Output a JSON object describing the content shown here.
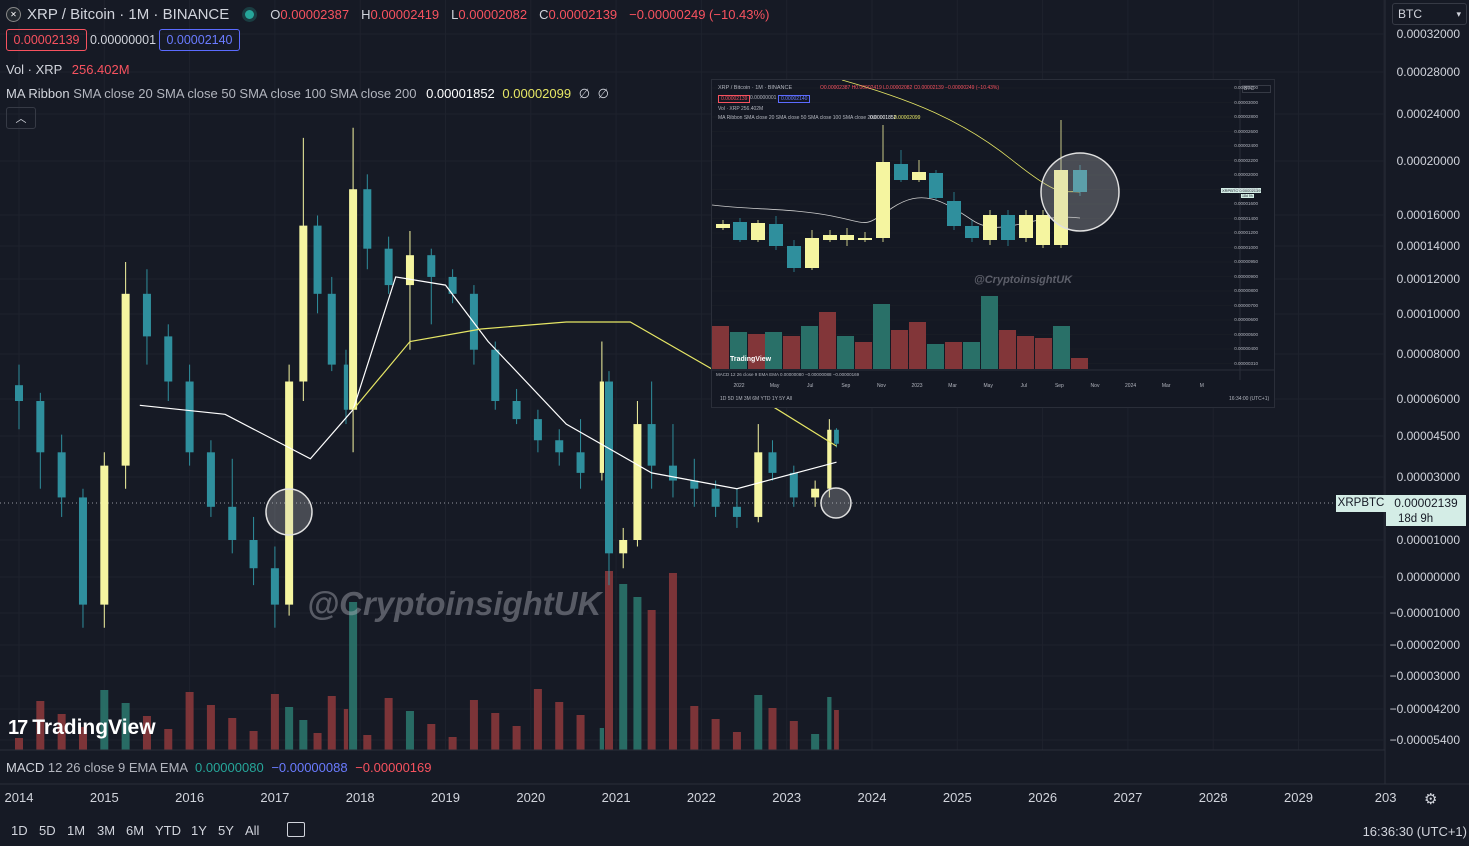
{
  "header": {
    "symbol": "XRP / Bitcoin · 1M · BINANCE",
    "ohlc": [
      {
        "label": "O",
        "value": "0.00002387"
      },
      {
        "label": "H",
        "value": "0.00002419"
      },
      {
        "label": "L",
        "value": "0.00002082"
      },
      {
        "label": "C",
        "value": "0.00002139"
      }
    ],
    "change": "−0.00000249 (−10.43%)",
    "bid": "0.00002139",
    "spread": "0.00000001",
    "ask": "0.00002140",
    "currency_select": "BTC"
  },
  "volume_legend": {
    "label": "Vol · XRP",
    "value": "256.402M"
  },
  "ma_legend": {
    "label": "MA Ribbon",
    "params": "SMA close 20 SMA close 50 SMA close 100 SMA close 200",
    "v1": "0.00001852",
    "v2": "0.00002099",
    "v3": "∅",
    "v4": "∅"
  },
  "macd_legend": {
    "label": "MACD",
    "params": "12 26 close 9 EMA EMA",
    "v1": "0.00000080",
    "v2": "−0.00000088",
    "v3": "−0.00000169"
  },
  "watermark": "@CryptoinsightUK",
  "tv_logo": "TradingView",
  "price_tag": {
    "symbol": "XRPBTC",
    "price": "0.00002139",
    "countdown": "18d 9h"
  },
  "y_axis": [
    "0.00032000",
    "0.00028000",
    "0.00024000",
    "0.00020000",
    "0.00016000",
    "0.00014000",
    "0.00012000",
    "0.00010000",
    "0.00008000",
    "0.00006000",
    "0.00004500",
    "0.00003000",
    "0.00001000",
    "0.00000000",
    "−0.00001000",
    "−0.00002000",
    "−0.00003000",
    "−0.00004200",
    "−0.00005400"
  ],
  "x_axis": [
    "2014",
    "2015",
    "2016",
    "2017",
    "2018",
    "2019",
    "2020",
    "2021",
    "2022",
    "2023",
    "2024",
    "2025",
    "2026",
    "2027",
    "2028",
    "2029",
    "203"
  ],
  "timeframes": [
    "1D",
    "5D",
    "1M",
    "3M",
    "6M",
    "YTD",
    "1Y",
    "5Y",
    "All"
  ],
  "clock": "16:36:30 (UTC+1)",
  "inset": {
    "header": "XRP / Bitcoin · 1M · BINANCE",
    "ohlc": "O0.00002387 H0.00002419 L0.00002082 C0.00002139 −0.00000249 (−10.43%)",
    "bid": "0.00002139",
    "spread": "0.00000001",
    "ask": "0.00002140",
    "vol": "Vol · XRP 256.402M",
    "ma": "MA Ribbon SMA close 20 SMA close 50 SMA close 100 SMA close 200",
    "ma_v1": "0.00001852",
    "ma_v2": "0.00002099",
    "currency": "BTC",
    "watermark": "@CryptoinsightUK",
    "tv_logo": "TradingView",
    "macd": "MACD 12 26 close 9 EMA EMA 0.00000080 −0.00000088 −0.00000169",
    "price_tag": "XRPBTC 0.00002139",
    "countdown": "18d 9h",
    "y_axis": [
      "0.00003200",
      "0.00003000",
      "0.00002800",
      "0.00002600",
      "0.00002400",
      "0.00002200",
      "0.00002000",
      "0.00001800",
      "0.00001600",
      "0.00001400",
      "0.00001200",
      "0.00001000",
      "0.00000950",
      "0.00000900",
      "0.00000800",
      "0.00000700",
      "0.00000600",
      "0.00000500",
      "0.00000400",
      "0.00000310"
    ],
    "x_axis": [
      "2022",
      "May",
      "Jul",
      "Sep",
      "Nov",
      "2023",
      "Mar",
      "May",
      "Jul",
      "Sep",
      "Nov",
      "2024",
      "Mar",
      "M"
    ],
    "timeframes": "1D 5D 1M 3M 6M YTD 1Y 5Y All",
    "clock": "16:34:00 (UTC+1)"
  },
  "chart_data": {
    "type": "candlestick",
    "symbol": "XRPBTC",
    "interval": "1M",
    "exchange": "BINANCE",
    "y_scale": "log",
    "grid": true,
    "x_range": [
      "2014",
      "2030"
    ],
    "candles": [
      {
        "t": "2014-01",
        "o": 3.4e-05,
        "h": 4e-05,
        "l": 2.4e-05,
        "c": 3e-05
      },
      {
        "t": "2014-04",
        "o": 3e-05,
        "h": 3.2e-05,
        "l": 1.5e-05,
        "c": 2e-05
      },
      {
        "t": "2014-07",
        "o": 2e-05,
        "h": 2.3e-05,
        "l": 1.2e-05,
        "c": 1.4e-05
      },
      {
        "t": "2014-10",
        "o": 1.4e-05,
        "h": 1.5e-05,
        "l": 5e-06,
        "c": 6e-06
      },
      {
        "t": "2015-01",
        "o": 6e-06,
        "h": 2e-05,
        "l": 5e-06,
        "c": 1.8e-05
      },
      {
        "t": "2015-04",
        "o": 1.8e-05,
        "h": 9e-05,
        "l": 1.5e-05,
        "c": 7e-05
      },
      {
        "t": "2015-07",
        "o": 7e-05,
        "h": 8.5e-05,
        "l": 4e-05,
        "c": 5e-05
      },
      {
        "t": "2015-10",
        "o": 5e-05,
        "h": 5.5e-05,
        "l": 3e-05,
        "c": 3.5e-05
      },
      {
        "t": "2016-01",
        "o": 3.5e-05,
        "h": 4e-05,
        "l": 1.8e-05,
        "c": 2e-05
      },
      {
        "t": "2016-04",
        "o": 2e-05,
        "h": 2.2e-05,
        "l": 1.2e-05,
        "c": 1.3e-05
      },
      {
        "t": "2016-07",
        "o": 1.3e-05,
        "h": 1.9e-05,
        "l": 9e-06,
        "c": 1e-05
      },
      {
        "t": "2016-10",
        "o": 1e-05,
        "h": 1.2e-05,
        "l": 7e-06,
        "c": 8e-06
      },
      {
        "t": "2017-01",
        "o": 8e-06,
        "h": 9.5e-06,
        "l": 5e-06,
        "c": 6e-06
      },
      {
        "t": "2017-03",
        "o": 6e-06,
        "h": 4e-05,
        "l": 5.5e-06,
        "c": 3.5e-05
      },
      {
        "t": "2017-05",
        "o": 3.5e-05,
        "h": 0.00024,
        "l": 3e-05,
        "c": 0.00012
      },
      {
        "t": "2017-07",
        "o": 0.00012,
        "h": 0.00013,
        "l": 6e-05,
        "c": 7e-05
      },
      {
        "t": "2017-09",
        "o": 7e-05,
        "h": 8e-05,
        "l": 3.8e-05,
        "c": 4e-05
      },
      {
        "t": "2017-11",
        "o": 4e-05,
        "h": 4.5e-05,
        "l": 2.5e-05,
        "c": 2.8e-05
      },
      {
        "t": "2017-12",
        "o": 2.8e-05,
        "h": 0.00026,
        "l": 2e-05,
        "c": 0.00016
      },
      {
        "t": "2018-02",
        "o": 0.00016,
        "h": 0.00018,
        "l": 8.5e-05,
        "c": 0.0001
      },
      {
        "t": "2018-05",
        "o": 0.0001,
        "h": 0.00011,
        "l": 7e-05,
        "c": 7.5e-05
      },
      {
        "t": "2018-08",
        "o": 7.5e-05,
        "h": 0.000115,
        "l": 4.5e-05,
        "c": 9.5e-05
      },
      {
        "t": "2018-11",
        "o": 9.5e-05,
        "h": 0.0001,
        "l": 5.5e-05,
        "c": 8e-05
      },
      {
        "t": "2019-02",
        "o": 8e-05,
        "h": 8.5e-05,
        "l": 6.5e-05,
        "c": 7e-05
      },
      {
        "t": "2019-05",
        "o": 7e-05,
        "h": 7.5e-05,
        "l": 4e-05,
        "c": 4.5e-05
      },
      {
        "t": "2019-08",
        "o": 4.5e-05,
        "h": 4.8e-05,
        "l": 2.8e-05,
        "c": 3e-05
      },
      {
        "t": "2019-11",
        "o": 3e-05,
        "h": 3.3e-05,
        "l": 2.5e-05,
        "c": 2.6e-05
      },
      {
        "t": "2020-02",
        "o": 2.6e-05,
        "h": 2.8e-05,
        "l": 2e-05,
        "c": 2.2e-05
      },
      {
        "t": "2020-05",
        "o": 2.2e-05,
        "h": 2.4e-05,
        "l": 1.8e-05,
        "c": 2e-05
      },
      {
        "t": "2020-08",
        "o": 2e-05,
        "h": 2.6e-05,
        "l": 1.5e-05,
        "c": 1.7e-05
      },
      {
        "t": "2020-11",
        "o": 1.7e-05,
        "h": 4.8e-05,
        "l": 1.6e-05,
        "c": 3.5e-05
      },
      {
        "t": "2020-12",
        "o": 3.5e-05,
        "h": 3.8e-05,
        "l": 7e-06,
        "c": 9e-06
      },
      {
        "t": "2021-02",
        "o": 9e-06,
        "h": 1.1e-05,
        "l": 8e-06,
        "c": 1e-05
      },
      {
        "t": "2021-04",
        "o": 1e-05,
        "h": 3e-05,
        "l": 9.5e-06,
        "c": 2.5e-05
      },
      {
        "t": "2021-06",
        "o": 2.5e-05,
        "h": 3.5e-05,
        "l": 1.5e-05,
        "c": 1.8e-05
      },
      {
        "t": "2021-09",
        "o": 1.8e-05,
        "h": 2.5e-05,
        "l": 1.4e-05,
        "c": 1.6e-05
      },
      {
        "t": "2021-12",
        "o": 1.6e-05,
        "h": 1.9e-05,
        "l": 1.3e-05,
        "c": 1.5e-05
      },
      {
        "t": "2022-03",
        "o": 1.5e-05,
        "h": 1.6e-05,
        "l": 1.2e-05,
        "c": 1.3e-05
      },
      {
        "t": "2022-06",
        "o": 1.3e-05,
        "h": 1.5e-05,
        "l": 1.1e-05,
        "c": 1.2e-05
      },
      {
        "t": "2022-09",
        "o": 1.2e-05,
        "h": 2.5e-05,
        "l": 1.15e-05,
        "c": 2e-05
      },
      {
        "t": "2022-11",
        "o": 2e-05,
        "h": 2.2e-05,
        "l": 1.6e-05,
        "c": 1.7e-05
      },
      {
        "t": "2023-02",
        "o": 1.7e-05,
        "h": 1.8e-05,
        "l": 1.3e-05,
        "c": 1.4e-05
      },
      {
        "t": "2023-05",
        "o": 1.4e-05,
        "h": 1.6e-05,
        "l": 1.3e-05,
        "c": 1.5e-05
      },
      {
        "t": "2023-07",
        "o": 1.5e-05,
        "h": 2.6e-05,
        "l": 1.4e-05,
        "c": 2.39e-05
      },
      {
        "t": "2023-08",
        "o": 2.39e-05,
        "h": 2.42e-05,
        "l": 2.08e-05,
        "c": 2.14e-05
      }
    ],
    "ma_ribbon": [
      {
        "name": "SMA 20",
        "color": "#ffffff",
        "points": [
          [
            "2015-06",
            2.9e-05
          ],
          [
            "2016-06",
            2.7e-05
          ],
          [
            "2017-06",
            1.9e-05
          ],
          [
            "2017-12",
            2.8e-05
          ],
          [
            "2018-06",
            8e-05
          ],
          [
            "2019-01",
            7.5e-05
          ],
          [
            "2019-07",
            4.8e-05
          ],
          [
            "2020-06",
            2.5e-05
          ],
          [
            "2021-06",
            1.7e-05
          ],
          [
            "2022-06",
            1.5e-05
          ],
          [
            "2023-08",
            1.85e-05
          ]
        ]
      },
      {
        "name": "SMA 50",
        "color": "#e6e665",
        "points": [
          [
            "2017-12",
            2.8e-05
          ],
          [
            "2018-08",
            4.8e-05
          ],
          [
            "2019-06",
            5.3e-05
          ],
          [
            "2020-06",
            5.6e-05
          ],
          [
            "2021-03",
            5.6e-05
          ],
          [
            "2022-03",
            3.8e-05
          ],
          [
            "2023-08",
            2.1e-05
          ]
        ]
      }
    ],
    "current_price": 2.139e-05
  }
}
